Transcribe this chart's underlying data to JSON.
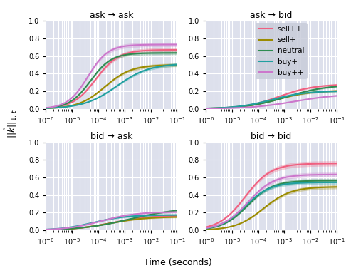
{
  "colors": {
    "sell++": "#F06080",
    "sell+": "#9B8B00",
    "neutral": "#2E8B50",
    "buy+": "#20A0A0",
    "buy++": "#CC77CC"
  },
  "legend_labels": [
    "sell++",
    "sell+",
    "neutral",
    "buy+",
    "buy++"
  ],
  "titles": [
    "ask → ask",
    "ask → bid",
    "bid → ask",
    "bid → bid"
  ],
  "xlabel": "Time (seconds)",
  "ylim": [
    0.0,
    1.0
  ],
  "background_color": "#DDE0EC",
  "legend_bg": "#C8CCDA",
  "line_width": 1.5,
  "subplot_params": {
    "ask->ask": {
      "sell++": {
        "asymp": 0.67,
        "ci": 0.025,
        "inflect": -4.1,
        "rate": 2.3
      },
      "sell+": {
        "asymp": 0.5,
        "ci": 0.02,
        "inflect": -3.75,
        "rate": 2.0
      },
      "neutral": {
        "asymp": 0.635,
        "ci": 0.02,
        "inflect": -4.3,
        "rate": 2.5
      },
      "buy+": {
        "asymp": 0.515,
        "ci": 0.02,
        "inflect": -3.3,
        "rate": 1.6
      },
      "buy++": {
        "asymp": 0.73,
        "ci": 0.025,
        "inflect": -4.4,
        "rate": 2.6
      }
    },
    "ask->bid": {
      "sell++": {
        "asymp": 0.28,
        "ci": 0.015,
        "inflect": -3.2,
        "rate": 1.5
      },
      "sell+": {
        "asymp": 0.21,
        "ci": 0.012,
        "inflect": -3.3,
        "rate": 1.5
      },
      "neutral": {
        "asymp": 0.275,
        "ci": 0.012,
        "inflect": -2.9,
        "rate": 1.3
      },
      "buy+": {
        "asymp": 0.205,
        "ci": 0.012,
        "inflect": -3.5,
        "rate": 1.5
      },
      "buy++": {
        "asymp": 0.17,
        "ci": 0.01,
        "inflect": -2.6,
        "rate": 1.2
      }
    },
    "bid->ask": {
      "sell++": {
        "asymp": 0.17,
        "ci": 0.012,
        "inflect": -3.5,
        "rate": 1.4
      },
      "sell+": {
        "asymp": 0.155,
        "ci": 0.01,
        "inflect": -3.6,
        "rate": 1.4
      },
      "neutral": {
        "asymp": 0.255,
        "ci": 0.013,
        "inflect": -2.8,
        "rate": 1.1
      },
      "buy+": {
        "asymp": 0.175,
        "ci": 0.012,
        "inflect": -4.2,
        "rate": 1.6
      },
      "buy++": {
        "asymp": 0.21,
        "ci": 0.012,
        "inflect": -3.9,
        "rate": 1.5
      }
    },
    "bid->bid": {
      "sell++": {
        "asymp": 0.76,
        "ci": 0.03,
        "inflect": -4.5,
        "rate": 2.0
      },
      "sell+": {
        "asymp": 0.495,
        "ci": 0.022,
        "inflect": -3.8,
        "rate": 1.9
      },
      "neutral": {
        "asymp": 0.565,
        "ci": 0.024,
        "inflect": -4.4,
        "rate": 2.1
      },
      "buy+": {
        "asymp": 0.545,
        "ci": 0.022,
        "inflect": -4.5,
        "rate": 2.1
      },
      "buy++": {
        "asymp": 0.635,
        "ci": 0.026,
        "inflect": -4.4,
        "rate": 2.0
      }
    }
  }
}
